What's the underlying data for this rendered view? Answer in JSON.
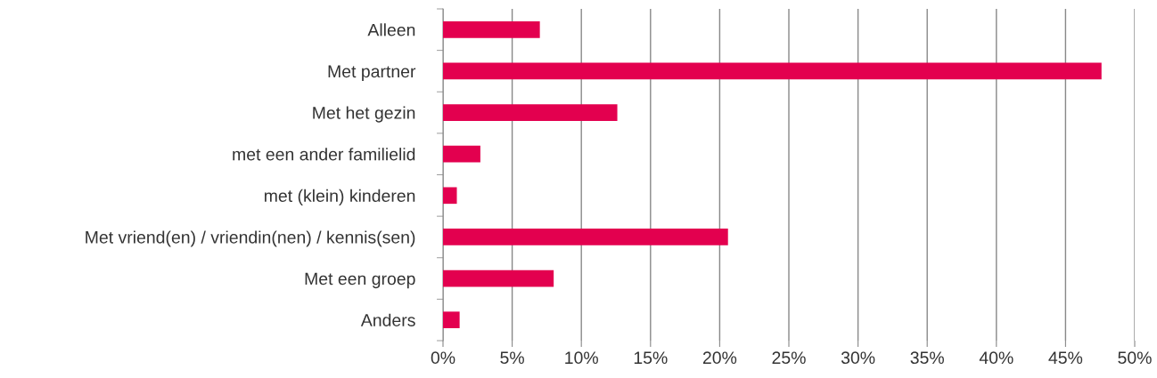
{
  "chart_data": {
    "type": "bar",
    "orientation": "horizontal",
    "categories": [
      "Alleen",
      "Met partner",
      "Met het gezin",
      "met een ander familielid",
      "met (klein) kinderen",
      "Met vriend(en) / vriendin(nen) / kennis(sen)",
      "Met een groep",
      "Anders"
    ],
    "values": [
      7.0,
      47.6,
      12.6,
      2.7,
      1.0,
      20.6,
      8.0,
      1.2
    ],
    "color": "#e3004f",
    "xlim": [
      0,
      50
    ],
    "xticks": [
      {
        "value": 0,
        "label": "0%"
      },
      {
        "value": 5,
        "label": "5%"
      },
      {
        "value": 10,
        "label": "10%"
      },
      {
        "value": 15,
        "label": "15%"
      },
      {
        "value": 20,
        "label": "20%"
      },
      {
        "value": 25,
        "label": "25%"
      },
      {
        "value": 30,
        "label": "30%"
      },
      {
        "value": 35,
        "label": "35%"
      },
      {
        "value": 40,
        "label": "40%"
      },
      {
        "value": 45,
        "label": "45%"
      },
      {
        "value": 50,
        "label": "50%"
      }
    ],
    "grid": "x"
  }
}
